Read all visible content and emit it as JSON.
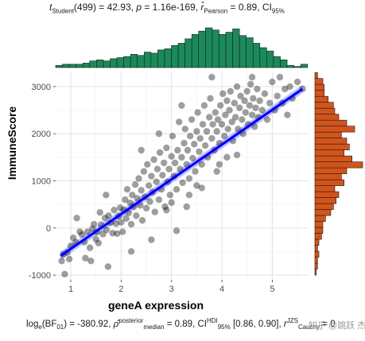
{
  "title": {
    "t_prefix": "t",
    "t_sub": "Student",
    "t_rest": "(499) = 42.93, ",
    "p_label": "p",
    "p_rest": " = 1.16e-169, ",
    "r_symbol": "r̂",
    "r_sub": "Pearson",
    "r_rest": " = 0.89, CI",
    "ci_sub": "95%"
  },
  "caption": {
    "log_prefix": "log",
    "log_sub": "e",
    "bf_rest": "(BF",
    "bf_sub": "01",
    "bf_value": ") = -380.92, ",
    "rho_symbol": "ρ̂",
    "rho_sup": "posterior",
    "rho_sub": "median",
    "rho_rest": " = 0.89, CI",
    "ci_sup": "HDI",
    "ci_sub": "95%",
    "ci_rest": " [0.86, 0.90], ",
    "r_symbol": "r",
    "r_sup": "JZS",
    "r_sub": "Cauchy",
    "r_rest": " = 0"
  },
  "watermark": "知乎 @跳跃  杰",
  "chart_data": {
    "type": "scatter",
    "xlabel": "geneA expression",
    "ylabel": "ImmuneScore",
    "xlim": [
      0.7,
      5.72
    ],
    "ylim": [
      -1100,
      3320
    ],
    "xticks": [
      1,
      2,
      3,
      4,
      5
    ],
    "yticks": [
      -1000,
      0,
      1000,
      2000,
      3000
    ],
    "grid": true,
    "point_color": "#000000",
    "point_alpha": 0.38,
    "fit_line": {
      "x": [
        0.8,
        5.6
      ],
      "y": [
        -590,
        2950
      ],
      "color": "#0000ff"
    },
    "confidence_band_color": "#8c8cff",
    "top_histogram": {
      "color": "#1b8a5a",
      "bin_edges": [
        0.7,
        5.7
      ],
      "counts": [
        2,
        3,
        3,
        3,
        4,
        6,
        7,
        6,
        8,
        9,
        10,
        12,
        11,
        14,
        13,
        16,
        17,
        20,
        22,
        26,
        30,
        33,
        36,
        34,
        30,
        32,
        35,
        29,
        27,
        22,
        18,
        15,
        10,
        7,
        2,
        1,
        3
      ]
    },
    "right_histogram": {
      "color": "#d2541b",
      "bin_edges": [
        -1000,
        3300
      ],
      "counts_bottom_to_top": [
        1,
        2,
        2,
        3,
        2,
        3,
        5,
        6,
        6,
        8,
        12,
        14,
        16,
        18,
        15,
        22,
        20,
        24,
        36,
        28,
        22,
        26,
        24,
        20,
        30,
        24,
        18,
        15,
        14,
        10,
        7,
        7,
        6,
        2
      ]
    },
    "points": [
      [
        0.82,
        -700
      ],
      [
        0.85,
        -560
      ],
      [
        0.88,
        -980
      ],
      [
        0.93,
        -520
      ],
      [
        0.97,
        -660
      ],
      [
        1.0,
        -380
      ],
      [
        1.05,
        -210
      ],
      [
        1.12,
        210
      ],
      [
        1.1,
        -300
      ],
      [
        1.18,
        -80
      ],
      [
        1.22,
        -140
      ],
      [
        1.27,
        -300
      ],
      [
        1.29,
        -640
      ],
      [
        1.33,
        -80
      ],
      [
        1.38,
        -420
      ],
      [
        1.43,
        -15
      ],
      [
        1.46,
        80
      ],
      [
        1.5,
        -240
      ],
      [
        1.52,
        -90
      ],
      [
        1.55,
        -320
      ],
      [
        1.58,
        330
      ],
      [
        1.6,
        70
      ],
      [
        1.64,
        -130
      ],
      [
        1.68,
        210
      ],
      [
        1.71,
        -40
      ],
      [
        1.75,
        260
      ],
      [
        1.74,
        -820
      ],
      [
        1.79,
        110
      ],
      [
        1.83,
        -110
      ],
      [
        1.86,
        380
      ],
      [
        1.9,
        90
      ],
      [
        1.92,
        -120
      ],
      [
        1.95,
        250
      ],
      [
        1.98,
        430
      ],
      [
        2.0,
        120
      ],
      [
        2.03,
        -80
      ],
      [
        2.05,
        390
      ],
      [
        2.08,
        600
      ],
      [
        2.1,
        200
      ],
      [
        2.12,
        820
      ],
      [
        2.15,
        320
      ],
      [
        2.18,
        530
      ],
      [
        2.2,
        80
      ],
      [
        2.22,
        700
      ],
      [
        2.25,
        450
      ],
      [
        2.28,
        920
      ],
      [
        2.3,
        260
      ],
      [
        2.32,
        630
      ],
      [
        2.35,
        1050
      ],
      [
        2.38,
        480
      ],
      [
        2.4,
        800
      ],
      [
        2.42,
        160
      ],
      [
        2.45,
        1200
      ],
      [
        2.47,
        660
      ],
      [
        2.5,
        420
      ],
      [
        2.52,
        1350
      ],
      [
        2.55,
        900
      ],
      [
        2.57,
        560
      ],
      [
        2.6,
        1100
      ],
      [
        2.62,
        760
      ],
      [
        2.65,
        1450
      ],
      [
        2.67,
        340
      ],
      [
        2.7,
        980
      ],
      [
        2.72,
        1250
      ],
      [
        2.75,
        600
      ],
      [
        2.77,
        1600
      ],
      [
        2.8,
        820
      ],
      [
        2.82,
        1120
      ],
      [
        2.85,
        1380
      ],
      [
        2.87,
        450
      ],
      [
        2.9,
        1700
      ],
      [
        2.92,
        980
      ],
      [
        2.95,
        1250
      ],
      [
        2.97,
        700
      ],
      [
        3.0,
        1520
      ],
      [
        3.02,
        1950
      ],
      [
        3.05,
        1100
      ],
      [
        3.07,
        1380
      ],
      [
        3.1,
        820
      ],
      [
        3.12,
        1650
      ],
      [
        3.15,
        2250
      ],
      [
        3.17,
        1250
      ],
      [
        3.2,
        1500
      ],
      [
        3.22,
        960
      ],
      [
        3.25,
        1800
      ],
      [
        3.27,
        2100
      ],
      [
        3.3,
        1350
      ],
      [
        3.32,
        1650
      ],
      [
        3.35,
        1050
      ],
      [
        3.37,
        1950
      ],
      [
        3.4,
        2300
      ],
      [
        3.42,
        1480
      ],
      [
        3.45,
        1780
      ],
      [
        3.47,
        1200
      ],
      [
        3.5,
        2050
      ],
      [
        3.52,
        2450
      ],
      [
        3.55,
        1620
      ],
      [
        3.57,
        1900
      ],
      [
        3.6,
        1350
      ],
      [
        3.62,
        2200
      ],
      [
        3.65,
        2600
      ],
      [
        3.67,
        1750
      ],
      [
        3.7,
        2050
      ],
      [
        3.72,
        1500
      ],
      [
        3.75,
        2350
      ],
      [
        3.77,
        2750
      ],
      [
        3.8,
        1900
      ],
      [
        3.82,
        2200
      ],
      [
        3.85,
        1650
      ],
      [
        3.87,
        2450
      ],
      [
        3.9,
        2050
      ],
      [
        3.92,
        2300
      ],
      [
        3.95,
        1800
      ],
      [
        3.97,
        2600
      ],
      [
        4.0,
        2200
      ],
      [
        4.02,
        2850
      ],
      [
        4.05,
        1950
      ],
      [
        4.07,
        2400
      ],
      [
        4.1,
        2700
      ],
      [
        4.12,
        2100
      ],
      [
        4.15,
        2500
      ],
      [
        4.17,
        2900
      ],
      [
        4.2,
        2250
      ],
      [
        4.22,
        1850
      ],
      [
        4.25,
        2650
      ],
      [
        4.27,
        2350
      ],
      [
        4.3,
        3000
      ],
      [
        4.32,
        2100
      ],
      [
        4.35,
        2550
      ],
      [
        4.37,
        2800
      ],
      [
        4.4,
        2300
      ],
      [
        4.42,
        2000
      ],
      [
        4.45,
        2700
      ],
      [
        4.47,
        2450
      ],
      [
        4.5,
        2900
      ],
      [
        4.52,
        2200
      ],
      [
        4.55,
        2600
      ],
      [
        4.57,
        3050
      ],
      [
        4.6,
        2400
      ],
      [
        4.62,
        2750
      ],
      [
        4.65,
        2150
      ],
      [
        4.67,
        2550
      ],
      [
        4.7,
        2950
      ],
      [
        4.72,
        2350
      ],
      [
        4.75,
        2700
      ],
      [
        4.8,
        2500
      ],
      [
        4.85,
        2850
      ],
      [
        4.9,
        2300
      ],
      [
        4.95,
        2650
      ],
      [
        5.0,
        3100
      ],
      [
        5.05,
        2500
      ],
      [
        5.1,
        2800
      ],
      [
        5.15,
        3200
      ],
      [
        5.2,
        2650
      ],
      [
        5.25,
        2950
      ],
      [
        5.3,
        2400
      ],
      [
        5.35,
        3000
      ],
      [
        5.4,
        2750
      ],
      [
        5.5,
        3100
      ],
      [
        5.6,
        2950
      ],
      [
        2.9,
        380
      ],
      [
        3.1,
        -60
      ],
      [
        3.0,
        540
      ],
      [
        3.35,
        700
      ],
      [
        3.6,
        850
      ],
      [
        3.9,
        1200
      ],
      [
        4.1,
        1500
      ],
      [
        2.6,
        -250
      ],
      [
        2.2,
        -500
      ],
      [
        3.8,
        3200
      ],
      [
        4.3,
        1550
      ],
      [
        2.4,
        1650
      ],
      [
        3.2,
        2600
      ],
      [
        3.5,
        900
      ],
      [
        4.6,
        3200
      ],
      [
        1.7,
        700
      ],
      [
        1.4,
        -700
      ],
      [
        2.75,
        2000
      ],
      [
        3.3,
        450
      ],
      [
        3.95,
        1350
      ]
    ]
  }
}
